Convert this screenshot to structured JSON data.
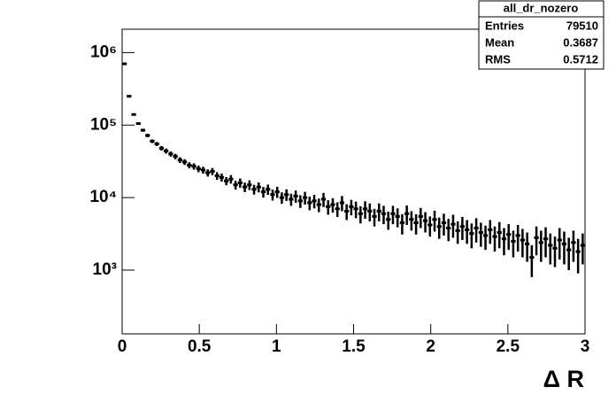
{
  "chart_data": {
    "type": "histogram",
    "x_label": "Δ R",
    "bins": [
      0,
      0.03,
      0.06,
      0.09,
      0.12,
      0.15,
      0.18,
      0.21,
      0.24,
      0.27,
      0.3,
      0.33,
      0.36,
      0.39,
      0.42,
      0.45,
      0.48,
      0.51,
      0.54,
      0.57,
      0.6,
      0.63,
      0.66,
      0.69,
      0.72,
      0.75,
      0.78,
      0.81,
      0.84,
      0.87,
      0.9,
      0.93,
      0.96,
      0.99,
      1.02,
      1.05,
      1.08,
      1.11,
      1.14,
      1.17,
      1.2,
      1.23,
      1.26,
      1.29,
      1.32,
      1.35,
      1.38,
      1.41,
      1.44,
      1.47,
      1.5,
      1.53,
      1.56,
      1.59,
      1.62,
      1.65,
      1.68,
      1.71,
      1.74,
      1.77,
      1.8,
      1.83,
      1.86,
      1.89,
      1.92,
      1.95,
      1.98,
      2.01,
      2.04,
      2.07,
      2.1,
      2.13,
      2.16,
      2.19,
      2.22,
      2.25,
      2.28,
      2.31,
      2.34,
      2.37,
      2.4,
      2.43,
      2.46,
      2.49,
      2.52,
      2.55,
      2.58,
      2.61,
      2.64,
      2.67,
      2.7,
      2.73,
      2.76,
      2.79,
      2.82,
      2.85,
      2.88,
      2.91,
      2.94,
      2.97,
      3
    ],
    "values": [
      700000,
      250000,
      140000,
      105000,
      85000,
      72000,
      60000,
      55000,
      48000,
      44000,
      40000,
      37000,
      33000,
      31000,
      28000,
      27000,
      25000,
      24000,
      22000,
      23000,
      20000,
      19000,
      17000,
      18000,
      15000,
      16000,
      14000,
      15000,
      13000,
      14000,
      12000,
      13000,
      11000,
      12000,
      10000,
      11000,
      9500,
      10500,
      9000,
      10000,
      8500,
      9000,
      8000,
      9500,
      7500,
      8000,
      7000,
      8500,
      6500,
      7500,
      7000,
      6000,
      7000,
      6500,
      5500,
      6500,
      6000,
      5000,
      6000,
      5500,
      4500,
      6000,
      5000,
      4500,
      5500,
      4800,
      4200,
      5000,
      4000,
      4500,
      3800,
      4300,
      3500,
      4000,
      3600,
      3200,
      3800,
      3300,
      3000,
      3600,
      2900,
      3300,
      2700,
      3100,
      2500,
      3000,
      2600,
      2300,
      1500,
      2800,
      2400,
      2700,
      2200,
      2000,
      2600,
      2300,
      1900,
      2400,
      1800,
      2200
    ],
    "errors": [
      14000,
      6000,
      4000,
      4000,
      4000,
      4000,
      3500,
      3500,
      3500,
      3500,
      3300,
      3200,
      3000,
      2800,
      2700,
      2700,
      2600,
      2600,
      2500,
      2600,
      2400,
      2400,
      2200,
      2400,
      2100,
      2300,
      2100,
      2300,
      2000,
      2200,
      2000,
      2100,
      1900,
      2100,
      1800,
      2000,
      1800,
      2000,
      1800,
      2000,
      1800,
      1900,
      1700,
      2100,
      1700,
      1800,
      1600,
      2000,
      1600,
      1800,
      1800,
      1600,
      1900,
      1800,
      1500,
      1800,
      1700,
      1400,
      1700,
      1600,
      1400,
      1800,
      1500,
      1400,
      1700,
      1500,
      1300,
      1600,
      1300,
      1500,
      1300,
      1500,
      1200,
      1400,
      1300,
      1200,
      1400,
      1200,
      1100,
      1300,
      1100,
      1300,
      1100,
      1200,
      1000,
      1200,
      1100,
      1000,
      700,
      1200,
      1100,
      1200,
      1000,
      900,
      1200,
      1100,
      900,
      1100,
      900,
      1000
    ],
    "color": "#000000",
    "log_y": true,
    "xlim": [
      0,
      3
    ],
    "xticks": [
      0,
      0.5,
      1,
      1.5,
      2,
      2.5,
      3
    ],
    "ylim": [
      132,
      2100000
    ],
    "yticks": [
      {
        "value": 1000,
        "label": "10³"
      },
      {
        "value": 10000,
        "label": "10⁴"
      },
      {
        "value": 100000,
        "label": "10⁵"
      },
      {
        "value": 1000000,
        "label": "10⁶"
      }
    ],
    "stats": {
      "title": "all_dr_nozero",
      "rows": [
        {
          "label": "Entries",
          "value": 79510
        },
        {
          "label": "Mean",
          "value": 0.3687
        },
        {
          "label": "RMS",
          "value": 0.5712
        }
      ]
    }
  }
}
